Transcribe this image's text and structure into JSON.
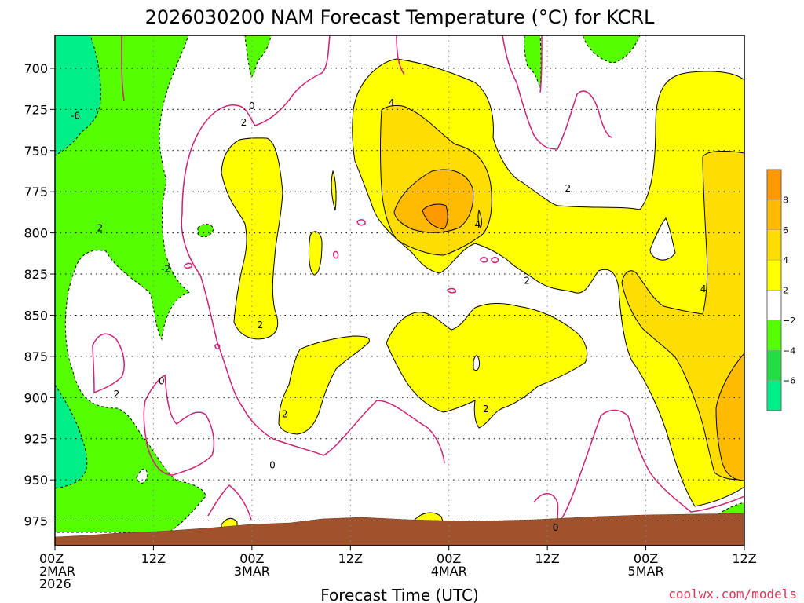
{
  "chart_data": {
    "type": "heatmap",
    "title": "2026030200 NAM Forecast Temperature (°C) for KCRL",
    "xlabel": "Forecast Time (UTC)",
    "ylabel": "",
    "x_ticks": [
      {
        "hour": 0,
        "lines": [
          "00Z",
          "2MAR",
          "2026"
        ]
      },
      {
        "hour": 12,
        "lines": [
          "12Z"
        ]
      },
      {
        "hour": 24,
        "lines": [
          "00Z",
          "3MAR"
        ]
      },
      {
        "hour": 36,
        "lines": [
          "12Z"
        ]
      },
      {
        "hour": 48,
        "lines": [
          "00Z",
          "4MAR"
        ]
      },
      {
        "hour": 60,
        "lines": [
          "12Z"
        ]
      },
      {
        "hour": 72,
        "lines": [
          "00Z",
          "5MAR"
        ]
      },
      {
        "hour": 84,
        "lines": [
          "12Z"
        ]
      }
    ],
    "xlim": [
      0,
      84
    ],
    "y_ticks": [
      700,
      725,
      750,
      775,
      800,
      825,
      850,
      875,
      900,
      925,
      950,
      975
    ],
    "ylim": [
      680,
      990
    ],
    "color_scale": {
      "bands": [
        {
          "min": -8,
          "max": -6,
          "color": "#00ee88"
        },
        {
          "min": -6,
          "max": -4,
          "color": "#22dd44"
        },
        {
          "min": -4,
          "max": -2,
          "color": "#55ff00"
        },
        {
          "min": -2,
          "max": 2,
          "color": "#ffffff"
        },
        {
          "min": 2,
          "max": 4,
          "color": "#ffff00"
        },
        {
          "min": 4,
          "max": 6,
          "color": "#ffdd00"
        },
        {
          "min": 6,
          "max": 8,
          "color": "#ffbb00"
        },
        {
          "min": 8,
          "max": 10,
          "color": "#ff9900"
        }
      ],
      "labels": [
        "8",
        "6",
        "4",
        "2",
        "−2",
        "−4",
        "−6"
      ]
    },
    "contour_labels": [
      {
        "text": "-6",
        "hour": 2.5,
        "p": 729
      },
      {
        "text": "0",
        "hour": 24,
        "p": 723
      },
      {
        "text": "2",
        "hour": 23,
        "p": 733
      },
      {
        "text": "4",
        "hour": 41,
        "p": 721
      },
      {
        "text": "2",
        "hour": 5.5,
        "p": 797
      },
      {
        "text": "-2",
        "hour": 13.5,
        "p": 822
      },
      {
        "text": "2",
        "hour": 62.5,
        "p": 773
      },
      {
        "text": "4",
        "hour": 51.5,
        "p": 795
      },
      {
        "text": "2",
        "hour": 57.5,
        "p": 829
      },
      {
        "text": "4",
        "hour": 79,
        "p": 834
      },
      {
        "text": "2",
        "hour": 25,
        "p": 856
      },
      {
        "text": "0",
        "hour": 13,
        "p": 890
      },
      {
        "text": "2",
        "hour": 7.5,
        "p": 898
      },
      {
        "text": "2",
        "hour": 28,
        "p": 910
      },
      {
        "text": "2",
        "hour": 52.5,
        "p": 907
      },
      {
        "text": "0",
        "hour": 26.5,
        "p": 941
      },
      {
        "text": "0",
        "hour": 61,
        "p": 979
      }
    ],
    "terrain_color": "#a0522d",
    "credit": "coolwx.com/models"
  }
}
